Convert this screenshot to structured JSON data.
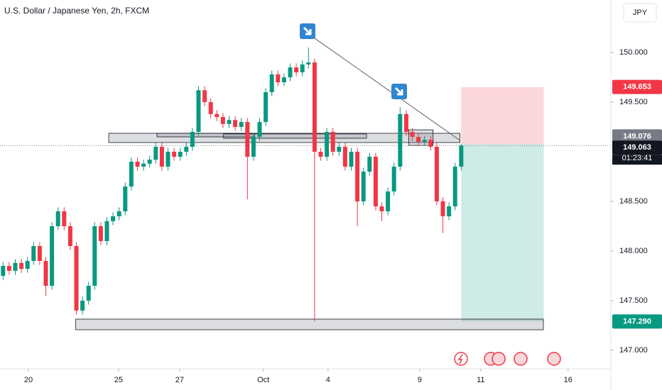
{
  "chart_data": {
    "type": "candlestick",
    "title": "U.S. Dollar / Japanese Yen, 2h, FXCM",
    "currency": "JPY",
    "up_color": "#089981",
    "down_color": "#f23645",
    "xlim": [
      -0.5,
      99.5
    ],
    "xticks": [
      {
        "value": 4.15,
        "label": "20"
      },
      {
        "value": 18.9,
        "label": "25"
      },
      {
        "value": 28.9,
        "label": "27"
      },
      {
        "value": 42.6,
        "label": "Oct"
      },
      {
        "value": 53.2,
        "label": "4"
      },
      {
        "value": 68.2,
        "label": "9"
      },
      {
        "value": 78.2,
        "label": "11"
      },
      {
        "value": 92.5,
        "label": "16"
      }
    ],
    "ylim": [
      146.814,
      150.529
    ],
    "yticks": [
      {
        "value": 147,
        "label": "147.000"
      },
      {
        "value": 147.5,
        "label": "147.500"
      },
      {
        "value": 148,
        "label": "148.000"
      },
      {
        "value": 148.5,
        "label": "148.500"
      },
      {
        "value": 149.5,
        "label": "149.500"
      },
      {
        "value": 150,
        "label": "150.000"
      }
    ],
    "candles": {
      "open": [
        147.75,
        147.85,
        147.8,
        147.88,
        147.82,
        147.9,
        148.05,
        147.9,
        147.65,
        148.25,
        148.4,
        148.25,
        148.05,
        147.4,
        147.5,
        147.65,
        148.25,
        148.1,
        148.3,
        148.35,
        148.4,
        148.65,
        148.9,
        148.85,
        148.88,
        148.92,
        149.05,
        148.85,
        149.0,
        148.95,
        149.0,
        149.05,
        149.2,
        149.62,
        149.5,
        149.38,
        149.35,
        149.28,
        149.32,
        149.25,
        149.3,
        148.95,
        149.15,
        149.3,
        149.6,
        149.78,
        149.7,
        149.75,
        149.85,
        149.8,
        149.88,
        149.9,
        149.0,
        148.95,
        149.2,
        149.0,
        149.05,
        148.85,
        149.0,
        148.5,
        148.8,
        148.95,
        148.45,
        148.4,
        148.6,
        148.85,
        149.38,
        149.2,
        149.15,
        149.1,
        149.12,
        149.05,
        148.5,
        148.35,
        148.45,
        148.85
      ],
      "high": [
        147.89,
        147.89,
        147.92,
        147.92,
        147.94,
        148.09,
        148.09,
        147.94,
        148.29,
        148.44,
        148.44,
        148.29,
        148.09,
        147.54,
        147.69,
        148.29,
        148.29,
        148.34,
        148.39,
        148.44,
        148.69,
        148.94,
        148.94,
        148.92,
        148.96,
        149.09,
        149.09,
        149.04,
        149.04,
        149.04,
        149.09,
        149.24,
        149.66,
        149.66,
        149.54,
        149.42,
        149.39,
        149.36,
        149.36,
        149.34,
        149.34,
        149.19,
        149.34,
        149.64,
        149.82,
        149.82,
        149.79,
        149.89,
        149.89,
        149.92,
        150.05,
        149.94,
        149.04,
        149.24,
        149.24,
        149.09,
        149.09,
        149.04,
        149.04,
        148.84,
        148.99,
        148.99,
        148.49,
        148.64,
        148.89,
        149.45,
        149.42,
        149.24,
        149.19,
        149.16,
        149.16,
        149.09,
        148.54,
        148.49,
        148.89,
        149.08
      ],
      "low": [
        147.71,
        147.76,
        147.76,
        147.78,
        147.78,
        147.86,
        147.86,
        147.55,
        147.61,
        148.21,
        148.21,
        148.01,
        147.36,
        147.36,
        147.46,
        147.61,
        148.06,
        148.06,
        148.26,
        148.31,
        148.36,
        148.61,
        148.81,
        148.81,
        148.84,
        148.88,
        148.81,
        148.81,
        148.91,
        148.91,
        148.96,
        149.01,
        149.16,
        149.46,
        149.34,
        149.31,
        149.24,
        149.24,
        149.21,
        149.21,
        148.52,
        148.91,
        149.11,
        149.26,
        149.56,
        149.66,
        149.66,
        149.71,
        149.76,
        149.76,
        149.84,
        147.29,
        148.91,
        148.91,
        148.96,
        148.96,
        148.81,
        148.81,
        148.25,
        148.46,
        148.76,
        148.41,
        148.3,
        148.36,
        148.56,
        148.81,
        149.16,
        149.11,
        149.06,
        149.06,
        149.01,
        148.46,
        148.18,
        148.31,
        148.41,
        148.81
      ],
      "close": [
        147.85,
        147.8,
        147.88,
        147.82,
        147.9,
        148.05,
        147.9,
        147.65,
        148.25,
        148.4,
        148.25,
        148.05,
        147.4,
        147.5,
        147.65,
        148.25,
        148.1,
        148.3,
        148.35,
        148.4,
        148.65,
        148.9,
        148.85,
        148.88,
        148.92,
        149.05,
        148.85,
        149.0,
        148.95,
        149.0,
        149.05,
        149.2,
        149.62,
        149.5,
        149.38,
        149.35,
        149.28,
        149.32,
        149.25,
        149.3,
        148.95,
        149.15,
        149.3,
        149.6,
        149.78,
        149.7,
        149.75,
        149.85,
        149.8,
        149.88,
        149.9,
        149.0,
        148.95,
        149.2,
        149.0,
        149.05,
        148.85,
        149.0,
        148.5,
        148.8,
        148.95,
        148.45,
        148.4,
        148.6,
        148.85,
        149.38,
        149.2,
        149.15,
        149.1,
        149.12,
        149.05,
        148.5,
        148.35,
        148.45,
        148.85,
        149.063
      ]
    },
    "zones": [
      {
        "x0": 17.3,
        "x1": 74.8,
        "top": 149.186,
        "bottom": 149.093
      },
      {
        "x0": 25.2,
        "x1": 41.2,
        "top": 149.186,
        "bottom": 149.15
      },
      {
        "x0": 36.1,
        "x1": 59.5,
        "top": 149.18,
        "bottom": 149.136
      },
      {
        "x0": 66.4,
        "x1": 70.4,
        "top": 149.221,
        "bottom": 149.064
      },
      {
        "x0": 11.9,
        "x1": 88.45,
        "top": 147.314,
        "bottom": 147.207
      }
    ],
    "trendline": {
      "x0": 50.7,
      "y0": 150.157,
      "x1": 74.8,
      "y1": 149.114
    },
    "position": {
      "x0": 75,
      "x1": 88.5,
      "stop": 149.653,
      "entry": 149.076,
      "target": {
        "value": 147.29,
        "label": "147.290"
      }
    },
    "last_price": 149.063,
    "countdown": "01:23:41"
  }
}
